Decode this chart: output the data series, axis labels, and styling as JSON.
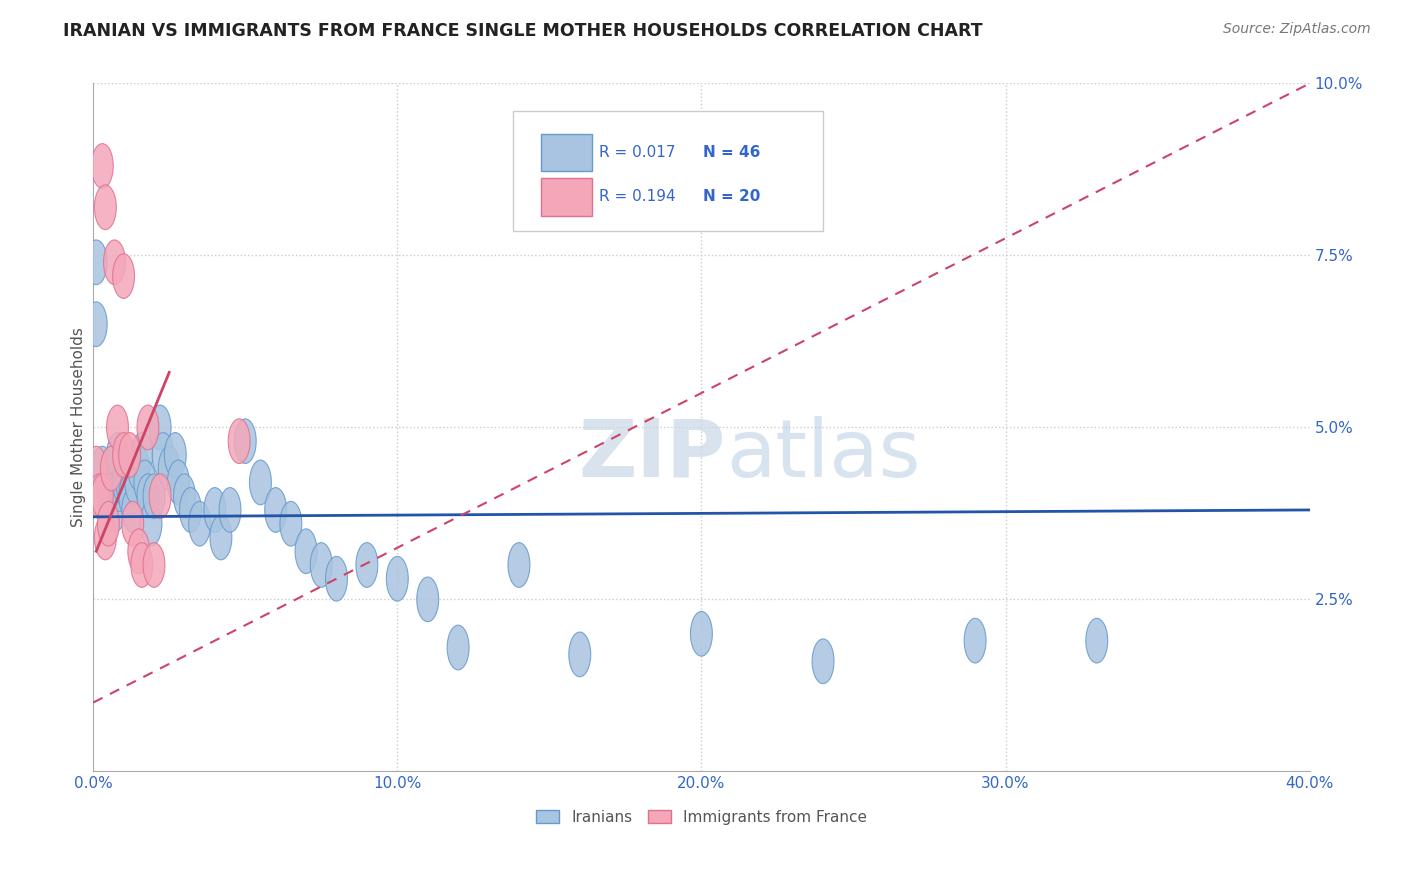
{
  "title": "IRANIAN VS IMMIGRANTS FROM FRANCE SINGLE MOTHER HOUSEHOLDS CORRELATION CHART",
  "source": "Source: ZipAtlas.com",
  "ylabel": "Single Mother Households",
  "xlim": [
    0,
    0.4
  ],
  "ylim": [
    0,
    0.1
  ],
  "xticks": [
    0.0,
    0.1,
    0.2,
    0.3,
    0.4
  ],
  "yticks": [
    0.0,
    0.025,
    0.05,
    0.075,
    0.1
  ],
  "xtick_labels": [
    "0.0%",
    "10.0%",
    "20.0%",
    "30.0%",
    "40.0%"
  ],
  "ytick_labels": [
    "",
    "2.5%",
    "5.0%",
    "7.5%",
    "10.0%"
  ],
  "legend_r_blue": "R = 0.017",
  "legend_n_blue": "N = 46",
  "legend_r_pink": "R = 0.194",
  "legend_n_pink": "N = 20",
  "blue_label": "Iranians",
  "pink_label": "Immigrants from France",
  "blue_color": "#a8c4e0",
  "pink_color": "#f4a7b9",
  "blue_edge": "#6699cc",
  "pink_edge": "#e07090",
  "trend_blue_color": "#2255aa",
  "trend_pink_color": "#cc4466",
  "watermark_zip": "ZIP",
  "watermark_atlas": "atlas",
  "iranians_x": [
    0.001,
    0.001,
    0.003,
    0.005,
    0.007,
    0.008,
    0.009,
    0.01,
    0.011,
    0.012,
    0.013,
    0.014,
    0.015,
    0.016,
    0.017,
    0.018,
    0.019,
    0.02,
    0.022,
    0.023,
    0.025,
    0.027,
    0.028,
    0.03,
    0.032,
    0.035,
    0.04,
    0.042,
    0.045,
    0.05,
    0.055,
    0.06,
    0.065,
    0.07,
    0.075,
    0.08,
    0.09,
    0.1,
    0.11,
    0.12,
    0.14,
    0.16,
    0.2,
    0.24,
    0.29,
    0.33
  ],
  "iranians_y": [
    0.074,
    0.065,
    0.044,
    0.04,
    0.038,
    0.046,
    0.041,
    0.042,
    0.042,
    0.04,
    0.038,
    0.042,
    0.044,
    0.046,
    0.042,
    0.04,
    0.036,
    0.04,
    0.05,
    0.046,
    0.044,
    0.046,
    0.042,
    0.04,
    0.038,
    0.036,
    0.038,
    0.034,
    0.038,
    0.048,
    0.042,
    0.038,
    0.036,
    0.032,
    0.03,
    0.028,
    0.03,
    0.028,
    0.025,
    0.018,
    0.03,
    0.017,
    0.02,
    0.016,
    0.019,
    0.019
  ],
  "france_x": [
    0.001,
    0.002,
    0.003,
    0.004,
    0.005,
    0.006,
    0.008,
    0.01,
    0.012,
    0.013,
    0.015,
    0.016,
    0.018,
    0.02,
    0.022,
    0.048,
    0.003,
    0.004,
    0.007,
    0.01
  ],
  "france_y": [
    0.044,
    0.04,
    0.04,
    0.034,
    0.036,
    0.044,
    0.05,
    0.046,
    0.046,
    0.036,
    0.032,
    0.03,
    0.05,
    0.03,
    0.04,
    0.048,
    0.088,
    0.082,
    0.074,
    0.072
  ]
}
